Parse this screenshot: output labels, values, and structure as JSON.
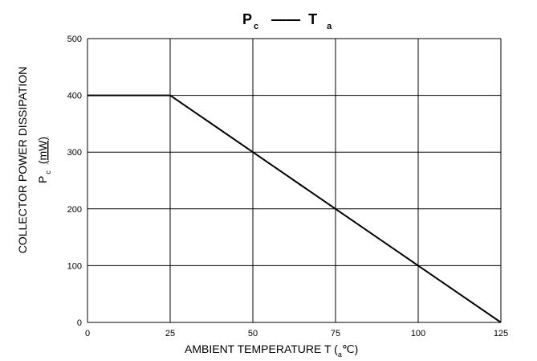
{
  "chart_data": {
    "type": "line",
    "title": {
      "main_1": "P",
      "sub_1": "c",
      "dash": "——",
      "main_2": "T",
      "sub_2": "a"
    },
    "xlabel": {
      "main": "AMBIENT TEMPERATURE T (",
      "sub": "a",
      "unit": "℃)"
    },
    "ylabel": {
      "line1": "COLLECTOR POWER DISSIPATION",
      "main": "P",
      "sub": "c",
      "unit": "(mW)"
    },
    "xlim": [
      0,
      125
    ],
    "ylim": [
      0,
      500
    ],
    "x_ticks": [
      0,
      25,
      50,
      75,
      100,
      125
    ],
    "y_ticks": [
      0,
      100,
      200,
      300,
      400,
      500
    ],
    "grid": true,
    "series": [
      {
        "x": [
          0,
          25,
          50,
          75,
          100,
          125
        ],
        "y": [
          400,
          400,
          300,
          200,
          100,
          0
        ],
        "color": "#000000"
      }
    ]
  }
}
